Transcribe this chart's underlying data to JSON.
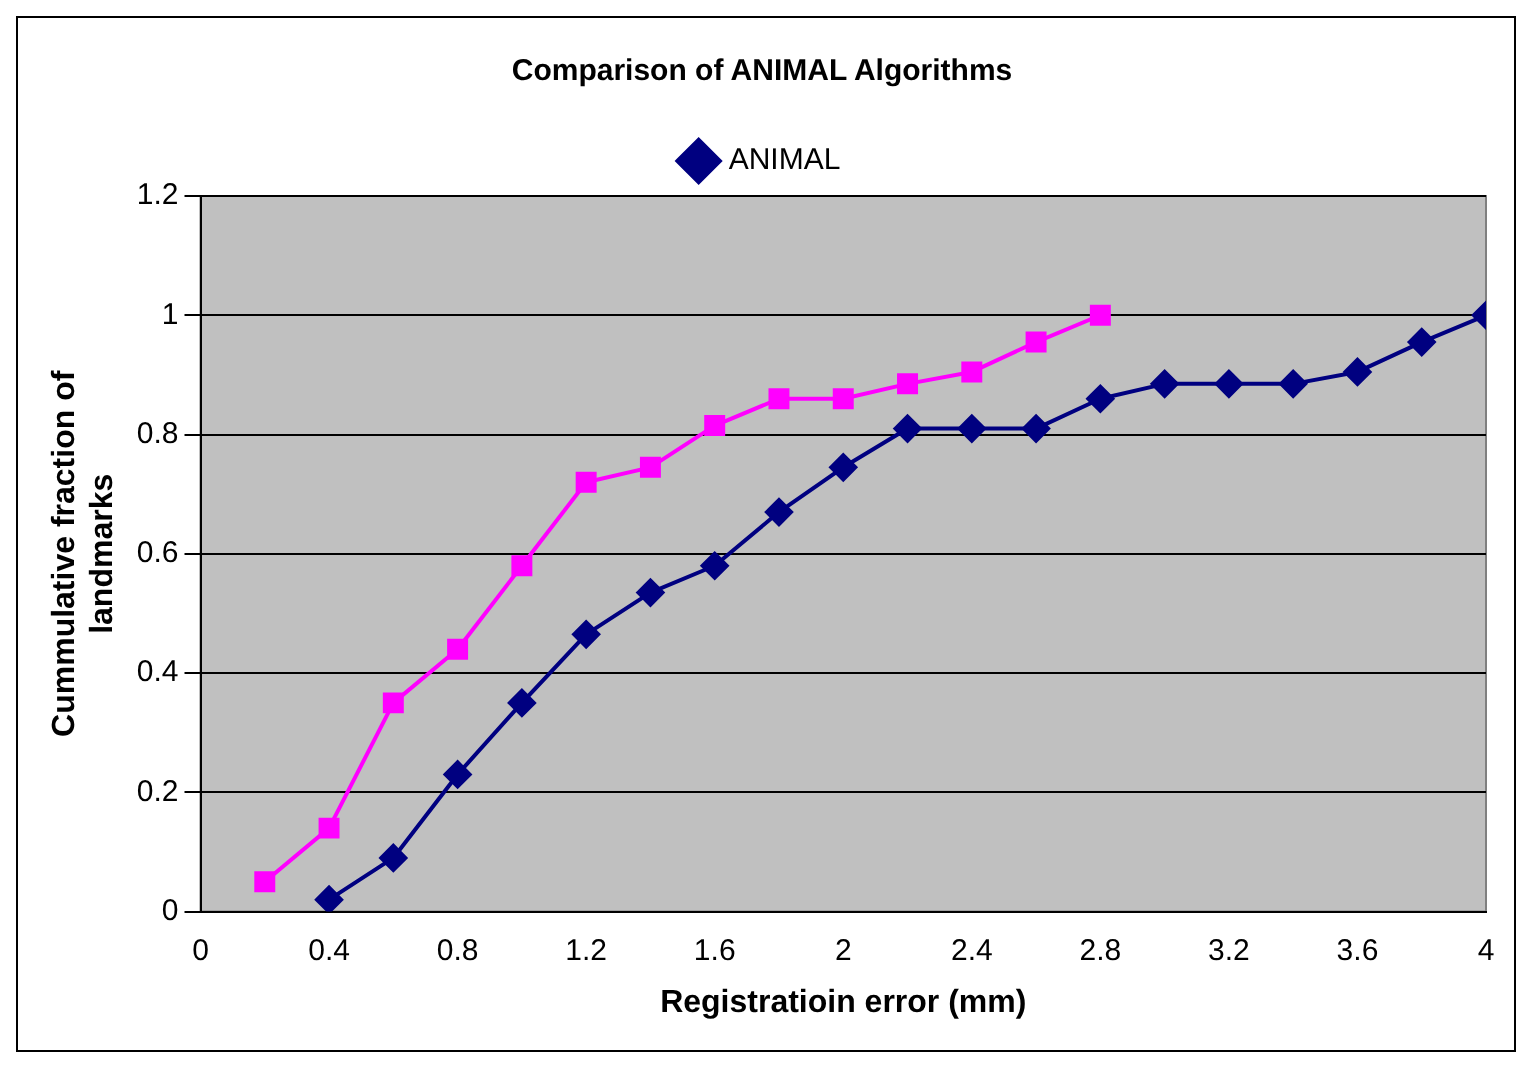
{
  "chart_data": {
    "type": "line",
    "title": "Comparison of ANIMAL Algorithms",
    "xlabel": "Registratioin error (mm)",
    "ylabel": "Cummulative fraction of landmarks",
    "xlim": [
      0,
      4
    ],
    "xticks": [
      0,
      0.4,
      0.8,
      1.2,
      1.6,
      2,
      2.4,
      2.8,
      3.2,
      3.6,
      4
    ],
    "ylim": [
      0,
      1.2
    ],
    "yticks": [
      0,
      0.2,
      0.4,
      0.6,
      0.8,
      1,
      1.2
    ],
    "grid": "y",
    "legend": "top",
    "line_style": "solid",
    "series": [
      {
        "name": "ANIMAL",
        "color": "#000080",
        "marker": "diamond",
        "x": [
          0.4,
          0.6,
          0.8,
          1,
          1.2,
          1.4,
          1.6,
          1.8,
          2,
          2.2,
          2.4,
          2.6,
          2.8,
          3,
          3.2,
          3.4,
          3.6,
          3.8,
          4
        ],
        "values": [
          0.02,
          0.09,
          0.23,
          0.35,
          0.465,
          0.535,
          0.58,
          0.67,
          0.745,
          0.81,
          0.81,
          0.81,
          0.86,
          0.885,
          0.885,
          0.885,
          0.905,
          0.955,
          1
        ]
      },
      {
        "color": "#ff00ff",
        "marker": "square",
        "x": [
          0.2,
          0.4,
          0.6,
          0.8,
          1,
          1.2,
          1.4,
          1.6,
          1.8,
          2,
          2.2,
          2.4,
          2.6,
          2.8
        ],
        "values": [
          0.05,
          0.14,
          0.35,
          0.44,
          0.58,
          0.72,
          0.745,
          0.815,
          0.86,
          0.86,
          0.885,
          0.905,
          0.955,
          1
        ]
      }
    ]
  }
}
